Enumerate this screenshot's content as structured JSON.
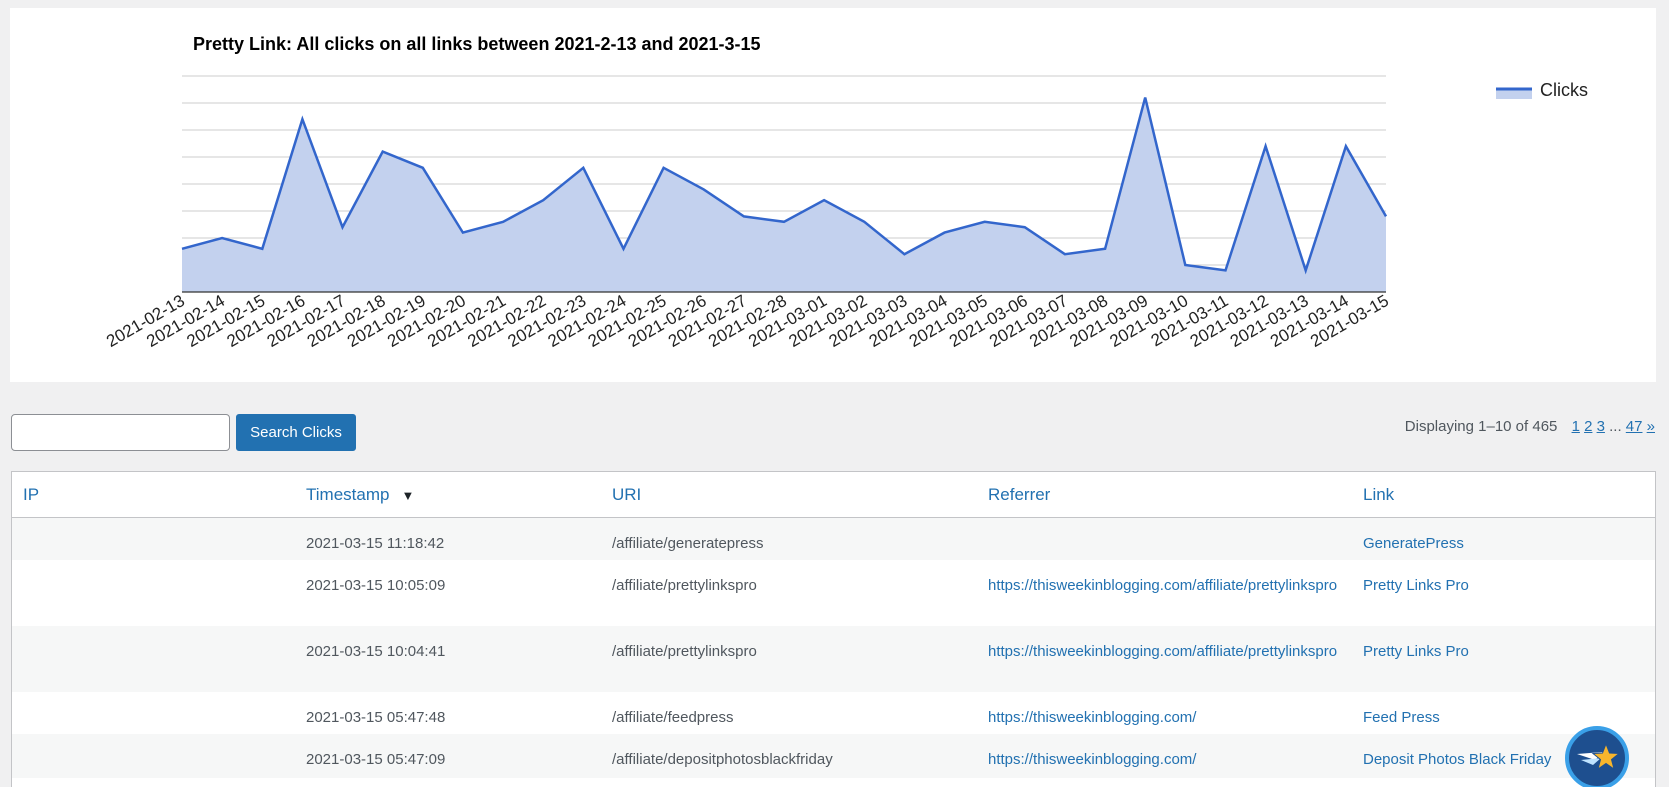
{
  "chart_data": {
    "type": "area",
    "title": "Pretty Link: All clicks on all links between 2021-2-13 and 2021-3-15",
    "x": [
      "2021-02-13",
      "2021-02-14",
      "2021-02-15",
      "2021-02-16",
      "2021-02-17",
      "2021-02-18",
      "2021-02-19",
      "2021-02-20",
      "2021-02-21",
      "2021-02-22",
      "2021-02-23",
      "2021-02-24",
      "2021-02-25",
      "2021-02-26",
      "2021-02-27",
      "2021-02-28",
      "2021-03-01",
      "2021-03-02",
      "2021-03-03",
      "2021-03-04",
      "2021-03-05",
      "2021-03-06",
      "2021-03-07",
      "2021-03-08",
      "2021-03-09",
      "2021-03-10",
      "2021-03-11",
      "2021-03-12",
      "2021-03-13",
      "2021-03-14",
      "2021-03-15"
    ],
    "series": [
      {
        "name": "Clicks",
        "values": [
          8,
          10,
          8,
          32,
          12,
          26,
          23,
          11,
          13,
          17,
          23,
          8,
          23,
          19,
          14,
          13,
          17,
          13,
          7,
          11,
          13,
          12,
          7,
          8,
          36,
          5,
          4,
          27,
          4,
          27,
          14
        ]
      }
    ],
    "ylim": [
      0,
      40
    ],
    "grid": true,
    "legend": "top-right",
    "color": "#3366cc",
    "fill_color": "#c3d1ee"
  },
  "search": {
    "value": "",
    "button_label": "Search Clicks"
  },
  "pagination": {
    "summary": "Displaying 1–10 of 465",
    "pages": [
      "1",
      "2",
      "3"
    ],
    "ellipsis": "...",
    "last": "47",
    "next": "»"
  },
  "table": {
    "headers": {
      "ip": "IP",
      "timestamp": "Timestamp",
      "uri": "URI",
      "referrer": "Referrer",
      "link": "Link"
    },
    "sort_indicator": "▼",
    "rows": [
      {
        "ip": "",
        "timestamp": "2021-03-15 11:18:42",
        "uri": "/affiliate/generatepress",
        "referrer": "",
        "link": "GeneratePress"
      },
      {
        "ip": "",
        "timestamp": "2021-03-15 10:05:09",
        "uri": "/affiliate/prettylinkspro",
        "referrer": "https://thisweekinblogging.com/affiliate/prettylinkspro",
        "link": "Pretty Links Pro"
      },
      {
        "ip": "",
        "timestamp": "2021-03-15 10:04:41",
        "uri": "/affiliate/prettylinkspro",
        "referrer": "https://thisweekinblogging.com/affiliate/prettylinkspro",
        "link": "Pretty Links Pro"
      },
      {
        "ip": "",
        "timestamp": "2021-03-15 05:47:48",
        "uri": "/affiliate/feedpress",
        "referrer": "https://thisweekinblogging.com/",
        "link": "Feed Press"
      },
      {
        "ip": "",
        "timestamp": "2021-03-15 05:47:09",
        "uri": "/affiliate/depositphotosblackfriday",
        "referrer": "https://thisweekinblogging.com/",
        "link": "Deposit Photos Black Friday"
      }
    ]
  },
  "help_badge": {
    "icon": "star-plane-icon"
  }
}
